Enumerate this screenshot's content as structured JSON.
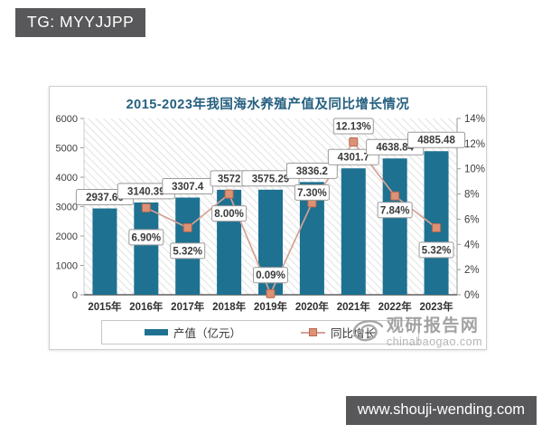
{
  "badges": {
    "top_left": "TG: MYYJJPP",
    "bottom_right": "www.shouji-wending.com"
  },
  "watermark": {
    "brand": "观研报告网",
    "domain": "chinabaogao.com"
  },
  "chart_data": {
    "type": "bar",
    "subtype": "combo-bar-line",
    "title": "2015-2023年我国海水养殖产值及同比增长情况",
    "categories": [
      "2015年",
      "2016年",
      "2017年",
      "2018年",
      "2019年",
      "2020年",
      "2021年",
      "2022年",
      "2023年"
    ],
    "series": [
      {
        "name": "产值（亿元）",
        "type": "bar",
        "axis": "left",
        "color": "#1e7191",
        "values": [
          2937.66,
          3140.39,
          3307.4,
          3572,
          3575.29,
          3836.2,
          4301.7,
          4638.84,
          4885.48
        ],
        "labels": [
          "2937.66",
          "3140.39",
          "3307.4",
          "3572",
          "3575.29",
          "3836.2",
          "4301.7",
          "4638.84",
          "4885.48"
        ]
      },
      {
        "name": "同比增长",
        "type": "line",
        "axis": "right",
        "color": "#d5a294",
        "marker_color": "#dd9175",
        "marker_border": "#b8684d",
        "values": [
          null,
          6.9,
          5.32,
          8.0,
          0.09,
          7.3,
          12.13,
          7.84,
          5.32
        ],
        "labels": [
          null,
          "6.90%",
          "5.32%",
          "8.00%",
          "0.09%",
          "7.30%",
          "12.13%",
          "7.84%",
          "5.32%"
        ]
      }
    ],
    "left_axis": {
      "min": 0,
      "max": 6000,
      "step": 1000,
      "tick_labels": [
        "0",
        "1000",
        "2000",
        "3000",
        "4000",
        "5000",
        "6000"
      ]
    },
    "right_axis": {
      "min": 0,
      "max": 14,
      "step": 2,
      "tick_labels": [
        "0%",
        "2%",
        "4%",
        "6%",
        "8%",
        "10%",
        "12%",
        "14%"
      ]
    },
    "legend_position": "bottom",
    "grid": false,
    "plot_background": "diagonal-hatch",
    "label_box_style": {
      "fill": "#ffffff",
      "border": "#9b9b9b",
      "text": "#3a3a3a"
    }
  }
}
